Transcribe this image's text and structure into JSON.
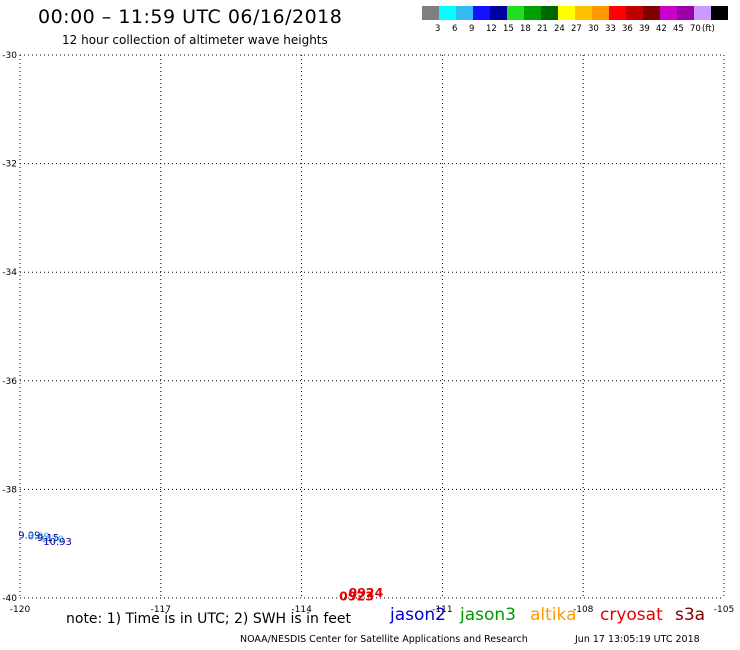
{
  "title": "00:00 – 11:59 UTC 06/16/2018",
  "subtitle": "12 hour collection of altimeter wave heights",
  "note": "note: 1) Time is in UTC; 2) SWH is in feet",
  "credit": "NOAA/NESDIS Center for Satellite Applications and Research",
  "timestamp": "Jun 17 13:05:19 UTC 2018",
  "satellites": [
    {
      "name": "jason2",
      "color": "#0000cc"
    },
    {
      "name": "jason3",
      "color": "#009900"
    },
    {
      "name": "altika",
      "color": "#ff9900"
    },
    {
      "name": "cryosat",
      "color": "#e60000"
    },
    {
      "name": "s3a",
      "color": "#800000"
    }
  ],
  "colorbar": {
    "unit": "(ft)",
    "colors": [
      "#7f7f7f",
      "#00ffff",
      "#33bbee",
      "#1111ff",
      "#0000a0",
      "#22dd22",
      "#00a000",
      "#006600",
      "#ffff00",
      "#ffc000",
      "#ff9900",
      "#ff0000",
      "#c00000",
      "#800000",
      "#cc00cc",
      "#9900aa",
      "#cc99ff",
      "#000000"
    ],
    "labels": [
      "3",
      "6",
      "9",
      "12",
      "15",
      "18",
      "21",
      "24",
      "27",
      "30",
      "33",
      "36",
      "39",
      "42",
      "45",
      "70"
    ]
  },
  "axes": {
    "lon_ticks": [
      "-120",
      "-117",
      "-114",
      "-111",
      "-108",
      "-105"
    ],
    "lat_ticks": [
      "-30",
      "-32",
      "-34",
      "-36",
      "-38",
      "-40"
    ]
  },
  "observation_colors": {
    "1": "#33aadd",
    "2": "#0000aa",
    "3": "#33cc33",
    "4": "#ff9900"
  },
  "tracks": [
    {
      "name": "track-1",
      "labels": [
        {
          "text": "0923",
          "lon": -113.2,
          "lat": -40.05,
          "color": "#e60000"
        },
        {
          "text": "0924",
          "lon": -113.0,
          "lat": -39.98,
          "color": "#e60000"
        }
      ],
      "obs": [
        [
          "9.09",
          -119.8,
          -38.9,
          2
        ],
        [
          "8.89",
          -119.6,
          -38.92,
          1
        ],
        [
          "9.15",
          -119.4,
          -38.95,
          2
        ],
        [
          "8.70",
          -119.3,
          -38.98,
          1
        ],
        [
          "10.93",
          -119.2,
          -39.02,
          2
        ]
      ]
    }
  ]
}
